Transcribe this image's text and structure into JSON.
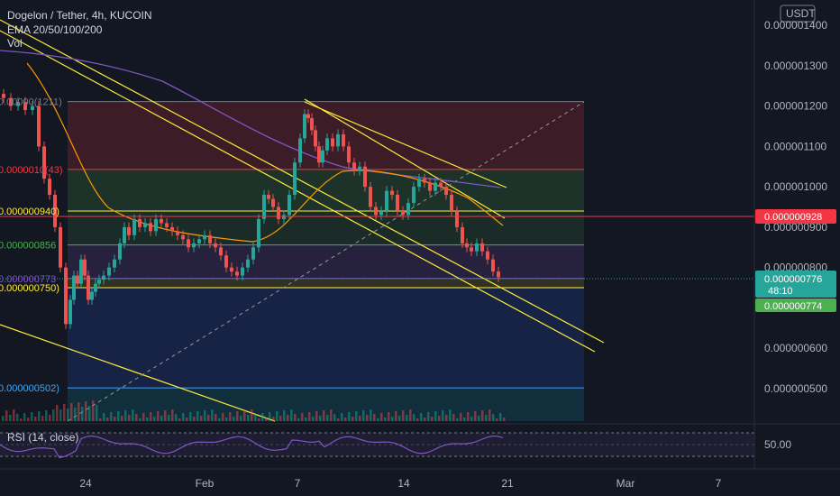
{
  "header": {
    "title": "Dogelon / Tether, 4h, KUCOIN",
    "indicator": "EMA 20/50/100/200",
    "volume": "Vol",
    "currency": "USDT"
  },
  "chart_data": {
    "type": "candlestick",
    "ylim": [
      4.3e-07,
      1.42e-06
    ],
    "y_ticks": [
      "0.000001400",
      "0.000001300",
      "0.000001200",
      "0.000001100",
      "0.000001000",
      "0.000000900",
      "0.000000800",
      "0.000000600",
      "0.000000500"
    ],
    "y_tick_values": [
      1.4e-06,
      1.3e-06,
      1.2e-06,
      1.1e-06,
      1e-06,
      9e-07,
      8e-07,
      6e-07,
      5e-07
    ],
    "x_ticks": [
      "24",
      "Feb",
      "7",
      "14",
      "21",
      "Mar",
      "7"
    ],
    "fib_levels": [
      {
        "label": "0.00000(1211)",
        "value": 1.211e-06,
        "color": "#787b86"
      },
      {
        "label": "0.0000010(43)",
        "value": 1.043e-06,
        "color": "#f23645"
      },
      {
        "label": "0.000000940)",
        "value": 9.4e-07,
        "color": "#ffeb3b"
      },
      {
        "label": "0.000000856",
        "value": 8.56e-07,
        "color": "#4caf50"
      },
      {
        "label": "0.000000773",
        "value": 7.73e-07,
        "color": "#7e57c2"
      },
      {
        "label": "0.000000750)",
        "value": 7.5e-07,
        "color": "#ffeb3b"
      },
      {
        "label": "0.000000502)",
        "value": 5.02e-07,
        "color": "#42a5f5"
      }
    ],
    "horizontal_line": {
      "label": "0.000000928",
      "value": 9.28e-07,
      "color": "#f23645"
    },
    "last_price": {
      "label": "0.000000776",
      "countdown": "48:10",
      "value": 7.76e-07,
      "color": "#26a69a"
    },
    "ema_tag": {
      "label": "0.000000774",
      "color": "#4caf50"
    },
    "rsi": {
      "label": "RSI (14, close)",
      "level": "50.00",
      "upper": 70,
      "lower": 30
    }
  }
}
